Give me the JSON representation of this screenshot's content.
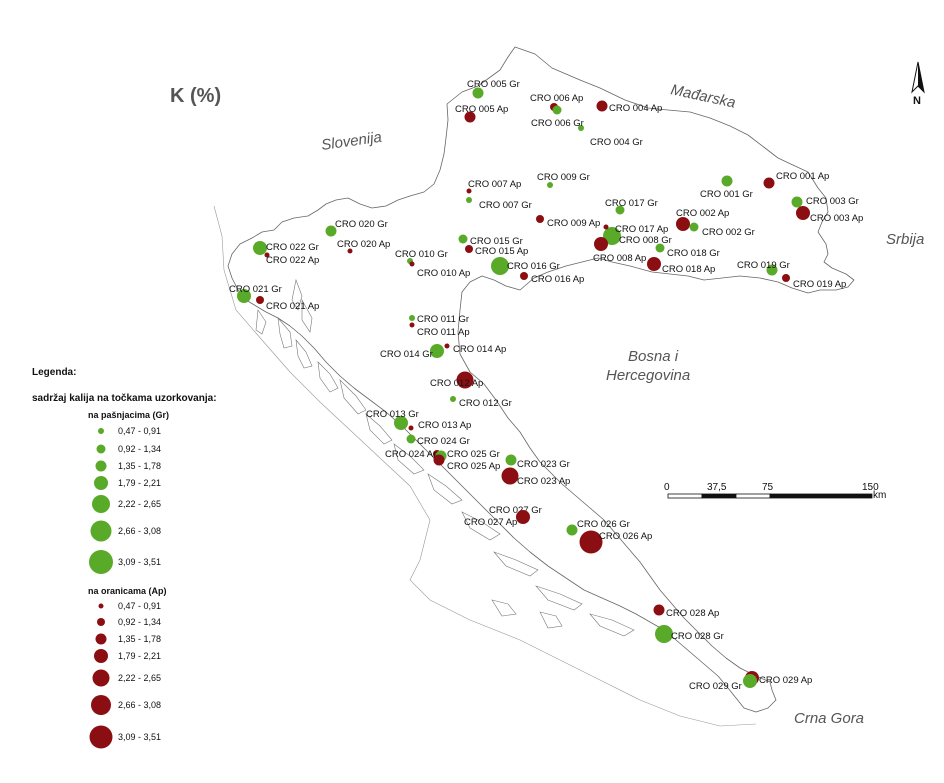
{
  "title": "K (%)",
  "countries": {
    "hungary": "Mađarska",
    "slovenia": "Slovenija",
    "serbia": "Srbija",
    "bosnia_line1": "Bosna i",
    "bosnia_line2": "Hercegovina",
    "montenegro": "Crna Gora"
  },
  "north_label": "N",
  "scale": {
    "ticks": [
      "0",
      "37,5",
      "75",
      "150"
    ],
    "unit": "km"
  },
  "colors": {
    "gr": "#5aaa2a",
    "ap": "#8b0f12",
    "outline": "#666666"
  },
  "legend": {
    "heading": "Legenda:",
    "subheading": "sadržaj kalija na točkama uzorkovanja:",
    "gr_title": "na pašnjacima (Gr)",
    "ap_title": "na oranicama (Ap)",
    "classes": [
      "0,47 - 0,91",
      "0,92 - 1,34",
      "1,35 - 1,78",
      "1,79 - 2,21",
      "2,22 - 2,65",
      "2,66 - 3,08",
      "3,09 - 3,51"
    ]
  },
  "sites": [
    {
      "name": "CRO 001 Gr",
      "type": "gr",
      "cls": 3
    },
    {
      "name": "CRO 001 Ap",
      "type": "ap",
      "cls": 3
    },
    {
      "name": "CRO 002 Ap",
      "type": "ap",
      "cls": 4
    },
    {
      "name": "CRO 002 Gr",
      "type": "gr",
      "cls": 2
    },
    {
      "name": "CRO 003 Gr",
      "type": "gr",
      "cls": 3
    },
    {
      "name": "CRO 003 Ap",
      "type": "ap",
      "cls": 4
    },
    {
      "name": "CRO 004 Ap",
      "type": "ap",
      "cls": 3
    },
    {
      "name": "CRO 004 Gr",
      "type": "gr",
      "cls": 1
    },
    {
      "name": "CRO 005 Gr",
      "type": "gr",
      "cls": 3
    },
    {
      "name": "CRO 005 Ap",
      "type": "ap",
      "cls": 3
    },
    {
      "name": "CRO 006 Ap",
      "type": "ap",
      "cls": 2
    },
    {
      "name": "CRO 006 Gr",
      "type": "gr",
      "cls": 2
    },
    {
      "name": "CRO 007 Ap",
      "type": "ap",
      "cls": 1
    },
    {
      "name": "CRO 007 Gr",
      "type": "gr",
      "cls": 1
    },
    {
      "name": "CRO 008 Gr",
      "type": "gr",
      "cls": 5
    },
    {
      "name": "CRO 008 Ap",
      "type": "ap",
      "cls": 4
    },
    {
      "name": "CRO 009 Gr",
      "type": "gr",
      "cls": 1
    },
    {
      "name": "CRO 009 Ap",
      "type": "ap",
      "cls": 2
    },
    {
      "name": "CRO 010 Gr",
      "type": "gr",
      "cls": 1
    },
    {
      "name": "CRO 010 Ap",
      "type": "ap",
      "cls": 1
    },
    {
      "name": "CRO 011 Gr",
      "type": "gr",
      "cls": 1
    },
    {
      "name": "CRO 011 Ap",
      "type": "ap",
      "cls": 1
    },
    {
      "name": "CRO 012 Ap",
      "type": "ap",
      "cls": 5
    },
    {
      "name": "CRO 012 Gr",
      "type": "gr",
      "cls": 1
    },
    {
      "name": "CRO 013 Gr",
      "type": "gr",
      "cls": 4
    },
    {
      "name": "CRO 013 Ap",
      "type": "ap",
      "cls": 1
    },
    {
      "name": "CRO 014 Gr",
      "type": "gr",
      "cls": 4
    },
    {
      "name": "CRO 014 Ap",
      "type": "ap",
      "cls": 1
    },
    {
      "name": "CRO 015 Gr",
      "type": "gr",
      "cls": 2
    },
    {
      "name": "CRO 015 Ap",
      "type": "ap",
      "cls": 2
    },
    {
      "name": "CRO 016 Gr",
      "type": "gr",
      "cls": 5
    },
    {
      "name": "CRO 016 Ap",
      "type": "ap",
      "cls": 2
    },
    {
      "name": "CRO 017 Gr",
      "type": "gr",
      "cls": 2
    },
    {
      "name": "CRO 017 Ap",
      "type": "ap",
      "cls": 1
    },
    {
      "name": "CRO 018 Gr",
      "type": "gr",
      "cls": 2
    },
    {
      "name": "CRO 018 Ap",
      "type": "ap",
      "cls": 4
    },
    {
      "name": "CRO 019 Gr",
      "type": "gr",
      "cls": 3
    },
    {
      "name": "CRO 019 Ap",
      "type": "ap",
      "cls": 2
    },
    {
      "name": "CRO 020 Gr",
      "type": "gr",
      "cls": 3
    },
    {
      "name": "CRO 020 Ap",
      "type": "ap",
      "cls": 1
    },
    {
      "name": "CRO 021 Gr",
      "type": "gr",
      "cls": 4
    },
    {
      "name": "CRO 021 Ap",
      "type": "ap",
      "cls": 2
    },
    {
      "name": "CRO 022 Gr",
      "type": "gr",
      "cls": 4
    },
    {
      "name": "CRO 022 Ap",
      "type": "ap",
      "cls": 1
    },
    {
      "name": "CRO 023 Gr",
      "type": "gr",
      "cls": 3
    },
    {
      "name": "CRO 023 Ap",
      "type": "ap",
      "cls": 5
    },
    {
      "name": "CRO 024 Gr",
      "type": "gr",
      "cls": 2
    },
    {
      "name": "CRO 024 Ap",
      "type": "ap",
      "cls": 2
    },
    {
      "name": "CRO 025 Gr",
      "type": "gr",
      "cls": 3
    },
    {
      "name": "CRO 025 Ap",
      "type": "ap",
      "cls": 3
    },
    {
      "name": "CRO 026 Gr",
      "type": "gr",
      "cls": 3
    },
    {
      "name": "CRO 026 Ap",
      "type": "ap",
      "cls": 7
    },
    {
      "name": "CRO 027 Gr",
      "type": "gr",
      "cls": 2
    },
    {
      "name": "CRO 027 Ap",
      "type": "ap",
      "cls": 4
    },
    {
      "name": "CRO 028 Ap",
      "type": "ap",
      "cls": 3
    },
    {
      "name": "CRO 028 Gr",
      "type": "gr",
      "cls": 5
    },
    {
      "name": "CRO 029 Ap",
      "type": "ap",
      "cls": 4
    },
    {
      "name": "CRO 029 Gr",
      "type": "gr",
      "cls": 4
    }
  ]
}
